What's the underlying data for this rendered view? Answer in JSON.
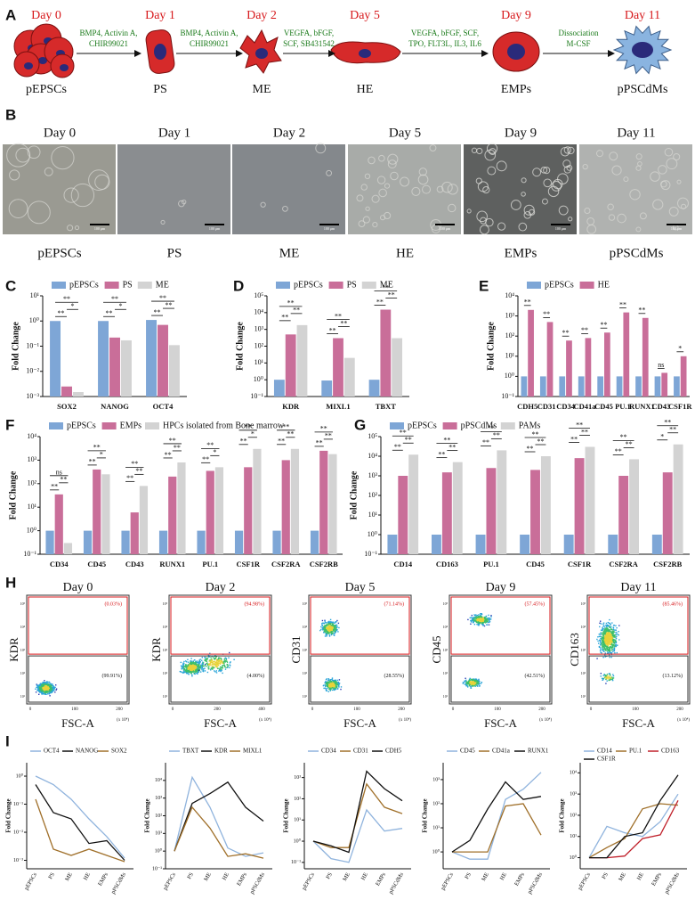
{
  "panel_labels": [
    "A",
    "B",
    "C",
    "D",
    "E",
    "F",
    "G",
    "H",
    "I"
  ],
  "diagram": {
    "stages": [
      {
        "day": "Day 0",
        "name": "pEPSCs"
      },
      {
        "day": "Day 1",
        "name": "PS"
      },
      {
        "day": "Day 2",
        "name": "ME"
      },
      {
        "day": "Day 5",
        "name": "HE"
      },
      {
        "day": "Day 9",
        "name": "EMPs"
      },
      {
        "day": "Day 11",
        "name": "pPSCdMs"
      }
    ],
    "steps": [
      [
        "BMP4, Activin A,",
        "CHIR99021"
      ],
      [
        "BMP4, Activin A,",
        "CHIR99021"
      ],
      [
        "VEGFA, bFGF,",
        "SCF, SB431542"
      ],
      [
        "VEGFA, bFGF, SCF,",
        "TPO, FLT3L, IL3, IL6"
      ],
      [
        "Dissociation",
        "M-CSF"
      ]
    ]
  },
  "micrographs": {
    "days": [
      "Day 0",
      "Day 1",
      "Day 2",
      "Day 5",
      "Day 9",
      "Day 11"
    ],
    "names": [
      "pEPSCs",
      "PS",
      "ME",
      "HE",
      "EMPs",
      "pPSCdMs"
    ],
    "scale_bar": "100 μm"
  },
  "flow": {
    "x_label": "FSC-A",
    "x_unit": "(x 10⁴)",
    "yticks": [
      "10¹",
      "10²",
      "10³",
      "10⁴",
      "10⁵"
    ],
    "panels": [
      {
        "day": "Day 0",
        "y_label": "KDR",
        "upper": "(0.03%)",
        "lower": "(99.91%)",
        "xticks": [
          "0",
          "100",
          "200"
        ]
      },
      {
        "day": "Day 2",
        "y_label": "KDR",
        "upper": "(94.98%)",
        "lower": "(4.00%)",
        "xticks": [
          "0",
          "200",
          "400"
        ]
      },
      {
        "day": "Day 5",
        "y_label": "CD31",
        "upper": "(71.14%)",
        "lower": "(28.55%)",
        "xticks": [
          "0",
          "100",
          "200"
        ]
      },
      {
        "day": "Day 9",
        "y_label": "CD45",
        "upper": "(57.45%)",
        "lower": "(42.51%)",
        "xticks": [
          "0",
          "100",
          "200"
        ]
      },
      {
        "day": "Day 11",
        "y_label": "CD163",
        "upper": "(85.46%)",
        "lower": "(13.12%)",
        "xticks": [
          "0",
          "100",
          "200"
        ]
      }
    ]
  },
  "chart_data": [
    {
      "type": "bar",
      "y_label": "Fold Change",
      "log_scale": true,
      "categories": [
        "SOX2",
        "NANOG",
        "OCT4"
      ],
      "series": [
        {
          "name": "pEPSCs",
          "color": "#7ea6d6",
          "values": [
            1,
            1,
            1.1
          ]
        },
        {
          "name": "PS",
          "color": "#c96e99",
          "values": [
            0.0025,
            0.22,
            0.7
          ]
        },
        {
          "name": "ME",
          "color": "#d3d3d3",
          "values": [
            0.0015,
            0.17,
            0.11
          ]
        }
      ],
      "significance": [
        [
          "**",
          "*",
          "**"
        ],
        [
          "**",
          "*",
          "**"
        ],
        [
          "**",
          "**",
          "**"
        ]
      ],
      "ylim": [
        0.001,
        10
      ],
      "yticks": [
        {
          "value": 0.001,
          "label": "10⁻³"
        },
        {
          "value": 0.01,
          "label": "10⁻²"
        },
        {
          "value": 0.1,
          "label": "10⁻¹"
        },
        {
          "value": 1,
          "label": "10⁰"
        },
        {
          "value": 10,
          "label": "10¹"
        }
      ]
    },
    {
      "type": "bar",
      "y_label": "Fold Change",
      "log_scale": true,
      "categories": [
        "KDR",
        "MIXL1",
        "TBXT"
      ],
      "series": [
        {
          "name": "pEPSCs",
          "color": "#7ea6d6",
          "values": [
            1,
            0.9,
            1
          ]
        },
        {
          "name": "PS",
          "color": "#c96e99",
          "values": [
            500,
            300,
            15000
          ]
        },
        {
          "name": "ME",
          "color": "#d3d3d3",
          "values": [
            1800,
            20,
            300
          ]
        }
      ],
      "significance": [
        [
          "**",
          "**",
          "**"
        ],
        [
          "**",
          "**",
          "**"
        ],
        [
          "**",
          "**",
          "**"
        ]
      ],
      "ylim": [
        0.1,
        100000
      ],
      "yticks": [
        {
          "value": 0.1,
          "label": "10⁻¹"
        },
        {
          "value": 1,
          "label": "10⁰"
        },
        {
          "value": 10,
          "label": "10¹"
        },
        {
          "value": 100,
          "label": "10²"
        },
        {
          "value": 1000,
          "label": "10³"
        },
        {
          "value": 10000,
          "label": "10⁴"
        },
        {
          "value": 100000,
          "label": "10⁵"
        }
      ]
    },
    {
      "type": "bar",
      "y_label": "Fold Change",
      "log_scale": true,
      "categories": [
        "CDH5",
        "CD31",
        "CD34",
        "CD41a",
        "CD45",
        "PU.1",
        "RUNX1",
        "CD43",
        "CSF1R"
      ],
      "series": [
        {
          "name": "pEPSCs",
          "color": "#7ea6d6",
          "values": [
            1,
            1,
            1,
            1,
            1,
            1,
            1,
            1,
            1
          ]
        },
        {
          "name": "HE",
          "color": "#c96e99",
          "values": [
            2000,
            500,
            60,
            80,
            150,
            1500,
            800,
            1.5,
            10
          ]
        }
      ],
      "significance": [
        [
          "**"
        ],
        [
          "**"
        ],
        [
          "**"
        ],
        [
          "**"
        ],
        [
          "**"
        ],
        [
          "**"
        ],
        [
          "**"
        ],
        [
          "ns"
        ],
        [
          "*"
        ]
      ],
      "ylim": [
        0.1,
        10000
      ],
      "yticks": [
        {
          "value": 0.1,
          "label": "10⁻¹"
        },
        {
          "value": 1,
          "label": "10⁰"
        },
        {
          "value": 10,
          "label": "10¹"
        },
        {
          "value": 100,
          "label": "10²"
        },
        {
          "value": 1000,
          "label": "10³"
        },
        {
          "value": 10000,
          "label": "10⁴"
        }
      ]
    },
    {
      "type": "bar",
      "y_label": "Fold Change",
      "log_scale": true,
      "categories": [
        "CD34",
        "CD45",
        "CD43",
        "RUNX1",
        "PU.1",
        "CSF1R",
        "CSF2RA",
        "CSF2RB"
      ],
      "series": [
        {
          "name": "pEPSCs",
          "color": "#7ea6d6",
          "values": [
            1,
            1,
            1,
            1,
            1,
            1,
            1,
            1
          ]
        },
        {
          "name": "EMPs",
          "color": "#c96e99",
          "values": [
            35,
            400,
            6,
            200,
            350,
            500,
            1000,
            2500
          ]
        },
        {
          "name": "HPCs isolated from Bone marrow",
          "color": "#d3d3d3",
          "values": [
            0.3,
            250,
            80,
            800,
            500,
            3000,
            3000,
            1800
          ]
        }
      ],
      "significance": [
        [
          "**",
          "**",
          "ns"
        ],
        [
          "**",
          "*",
          "**"
        ],
        [
          "**",
          "**",
          "**"
        ],
        [
          "**",
          "**",
          "**"
        ],
        [
          "**",
          "*",
          "**"
        ],
        [
          "**",
          "*",
          "**"
        ],
        [
          "**",
          "**",
          "**"
        ],
        [
          "**",
          "**",
          "**"
        ]
      ],
      "ylim": [
        0.1,
        10000
      ],
      "yticks": [
        {
          "value": 0.1,
          "label": "10⁻¹"
        },
        {
          "value": 1,
          "label": "10⁰"
        },
        {
          "value": 10,
          "label": "10¹"
        },
        {
          "value": 100,
          "label": "10²"
        },
        {
          "value": 1000,
          "label": "10³"
        },
        {
          "value": 10000,
          "label": "10⁴"
        }
      ]
    },
    {
      "type": "bar",
      "y_label": "Fold Change",
      "log_scale": true,
      "categories": [
        "CD14",
        "CD163",
        "PU.1",
        "CD45",
        "CSF1R",
        "CSF2RA",
        "CSF2RB"
      ],
      "series": [
        {
          "name": "pEPSCs",
          "color": "#7ea6d6",
          "values": [
            1,
            1,
            1,
            1,
            1,
            1,
            1
          ]
        },
        {
          "name": "pPSCdMs",
          "color": "#c96e99",
          "values": [
            1000,
            1500,
            2500,
            2000,
            8000,
            1000,
            1500
          ]
        },
        {
          "name": "PAMs",
          "color": "#d3d3d3",
          "values": [
            12000,
            5000,
            20000,
            10000,
            30000,
            7000,
            40000
          ]
        }
      ],
      "significance": [
        [
          "**",
          "**",
          "**"
        ],
        [
          "**",
          "**",
          "**"
        ],
        [
          "**",
          "**",
          "**"
        ],
        [
          "**",
          "**",
          "**"
        ],
        [
          "**",
          "**",
          "**"
        ],
        [
          "**",
          "**",
          "**"
        ],
        [
          "*",
          "**",
          "**"
        ]
      ],
      "ylim": [
        0.1,
        100000
      ],
      "yticks": [
        {
          "value": 0.1,
          "label": "10⁻¹"
        },
        {
          "value": 1,
          "label": "10⁰"
        },
        {
          "value": 10,
          "label": "10¹"
        },
        {
          "value": 100,
          "label": "10²"
        },
        {
          "value": 1000,
          "label": "10³"
        },
        {
          "value": 10000,
          "label": "10⁴"
        },
        {
          "value": 100000,
          "label": "10⁵"
        }
      ]
    },
    {
      "type": "line",
      "y_label": "Fold Change",
      "log_scale": true,
      "categories": [
        "pEPSCs",
        "PS",
        "ME",
        "HE",
        "EMPs",
        "pPSCdMs"
      ],
      "series": [
        {
          "name": "OCT4",
          "color": "#8fb3dd",
          "values": [
            1,
            0.5,
            0.15,
            0.03,
            0.007,
            0.0012
          ]
        },
        {
          "name": "NANOG",
          "color": "#111111",
          "values": [
            0.5,
            0.05,
            0.03,
            0.004,
            0.005,
            0.001
          ]
        },
        {
          "name": "SOX2",
          "color": "#a0702a",
          "values": [
            0.15,
            0.0025,
            0.0015,
            0.0025,
            0.0015,
            0.0009
          ]
        }
      ],
      "ylim": [
        0.0005,
        3
      ],
      "yticks": [
        {
          "value": 0.001,
          "label": "10⁻³"
        },
        {
          "value": 0.01,
          "label": "10⁻²"
        },
        {
          "value": 0.1,
          "label": "10⁻¹"
        },
        {
          "value": 1,
          "label": "10⁰"
        }
      ]
    },
    {
      "type": "line",
      "y_label": "Fold Change",
      "log_scale": true,
      "categories": [
        "pEPSCs",
        "PS",
        "ME",
        "HE",
        "EMPs",
        "pPSCdMs"
      ],
      "series": [
        {
          "name": "TBXT",
          "color": "#8fb3dd",
          "values": [
            1,
            15000,
            300,
            1.5,
            0.5,
            0.8
          ]
        },
        {
          "name": "KDR",
          "color": "#111111",
          "values": [
            1,
            500,
            1800,
            8000,
            300,
            50
          ]
        },
        {
          "name": "MIXL1",
          "color": "#a0702a",
          "values": [
            1,
            300,
            20,
            0.5,
            0.7,
            0.4
          ]
        }
      ],
      "ylim": [
        0.1,
        100000
      ],
      "yticks": [
        {
          "value": 0.1,
          "label": "10⁻¹"
        },
        {
          "value": 1,
          "label": "10⁰"
        },
        {
          "value": 10,
          "label": "10¹"
        },
        {
          "value": 100,
          "label": "10²"
        },
        {
          "value": 1000,
          "label": "10³"
        },
        {
          "value": 10000,
          "label": "10⁴"
        }
      ]
    },
    {
      "type": "line",
      "y_label": "Fold Change",
      "log_scale": true,
      "categories": [
        "pEPSCs",
        "PS",
        "ME",
        "HE",
        "EMPs",
        "pPSCdMs"
      ],
      "series": [
        {
          "name": "CD34",
          "color": "#8fb3dd",
          "values": [
            1,
            0.15,
            0.1,
            30,
            3,
            4
          ]
        },
        {
          "name": "CD31",
          "color": "#a0702a",
          "values": [
            1,
            0.5,
            0.5,
            500,
            40,
            20
          ]
        },
        {
          "name": "CDH5",
          "color": "#111111",
          "values": [
            1,
            0.6,
            0.3,
            2000,
            300,
            80
          ]
        }
      ],
      "ylim": [
        0.05,
        5000
      ],
      "yticks": [
        {
          "value": 0.1,
          "label": "10⁻¹"
        },
        {
          "value": 1,
          "label": "10⁰"
        },
        {
          "value": 10,
          "label": "10¹"
        },
        {
          "value": 100,
          "label": "10²"
        },
        {
          "value": 1000,
          "label": "10³"
        }
      ]
    },
    {
      "type": "line",
      "y_label": "Fold Change",
      "log_scale": true,
      "categories": [
        "pEPSCs",
        "PS",
        "ME",
        "HE",
        "EMPs",
        "pPSCdMs"
      ],
      "series": [
        {
          "name": "CD45",
          "color": "#8fb3dd",
          "values": [
            1,
            0.5,
            0.5,
            150,
            400,
            2000
          ]
        },
        {
          "name": "CD41a",
          "color": "#a0702a",
          "values": [
            1,
            1,
            1,
            80,
            100,
            5
          ]
        },
        {
          "name": "RUNX1",
          "color": "#111111",
          "values": [
            1,
            3,
            60,
            800,
            150,
            200
          ]
        }
      ],
      "ylim": [
        0.2,
        5000
      ],
      "yticks": [
        {
          "value": 1,
          "label": "10⁰"
        },
        {
          "value": 10,
          "label": "10¹"
        },
        {
          "value": 100,
          "label": "10²"
        },
        {
          "value": 1000,
          "label": "10³"
        }
      ]
    },
    {
      "type": "line",
      "y_label": "Fold Change",
      "log_scale": true,
      "categories": [
        "pEPSCs",
        "PS",
        "ME",
        "HE",
        "EMPs",
        "pPSCdMs"
      ],
      "series": [
        {
          "name": "CD14",
          "color": "#8fb3dd",
          "values": [
            1,
            30,
            15,
            10,
            50,
            1000
          ]
        },
        {
          "name": "PU.1",
          "color": "#a0702a",
          "values": [
            1,
            3,
            8,
            200,
            350,
            300
          ]
        },
        {
          "name": "CD163",
          "color": "#c0202a",
          "values": [
            1,
            1,
            1.2,
            8,
            12,
            500
          ]
        },
        {
          "name": "CSF1R",
          "color": "#111111",
          "values": [
            1,
            1,
            10,
            15,
            500,
            8000
          ]
        }
      ],
      "ylim": [
        0.3,
        30000
      ],
      "yticks": [
        {
          "value": 1,
          "label": "10⁰"
        },
        {
          "value": 10,
          "label": "10¹"
        },
        {
          "value": 100,
          "label": "10²"
        },
        {
          "value": 1000,
          "label": "10³"
        },
        {
          "value": 10000,
          "label": "10⁴"
        }
      ]
    }
  ]
}
